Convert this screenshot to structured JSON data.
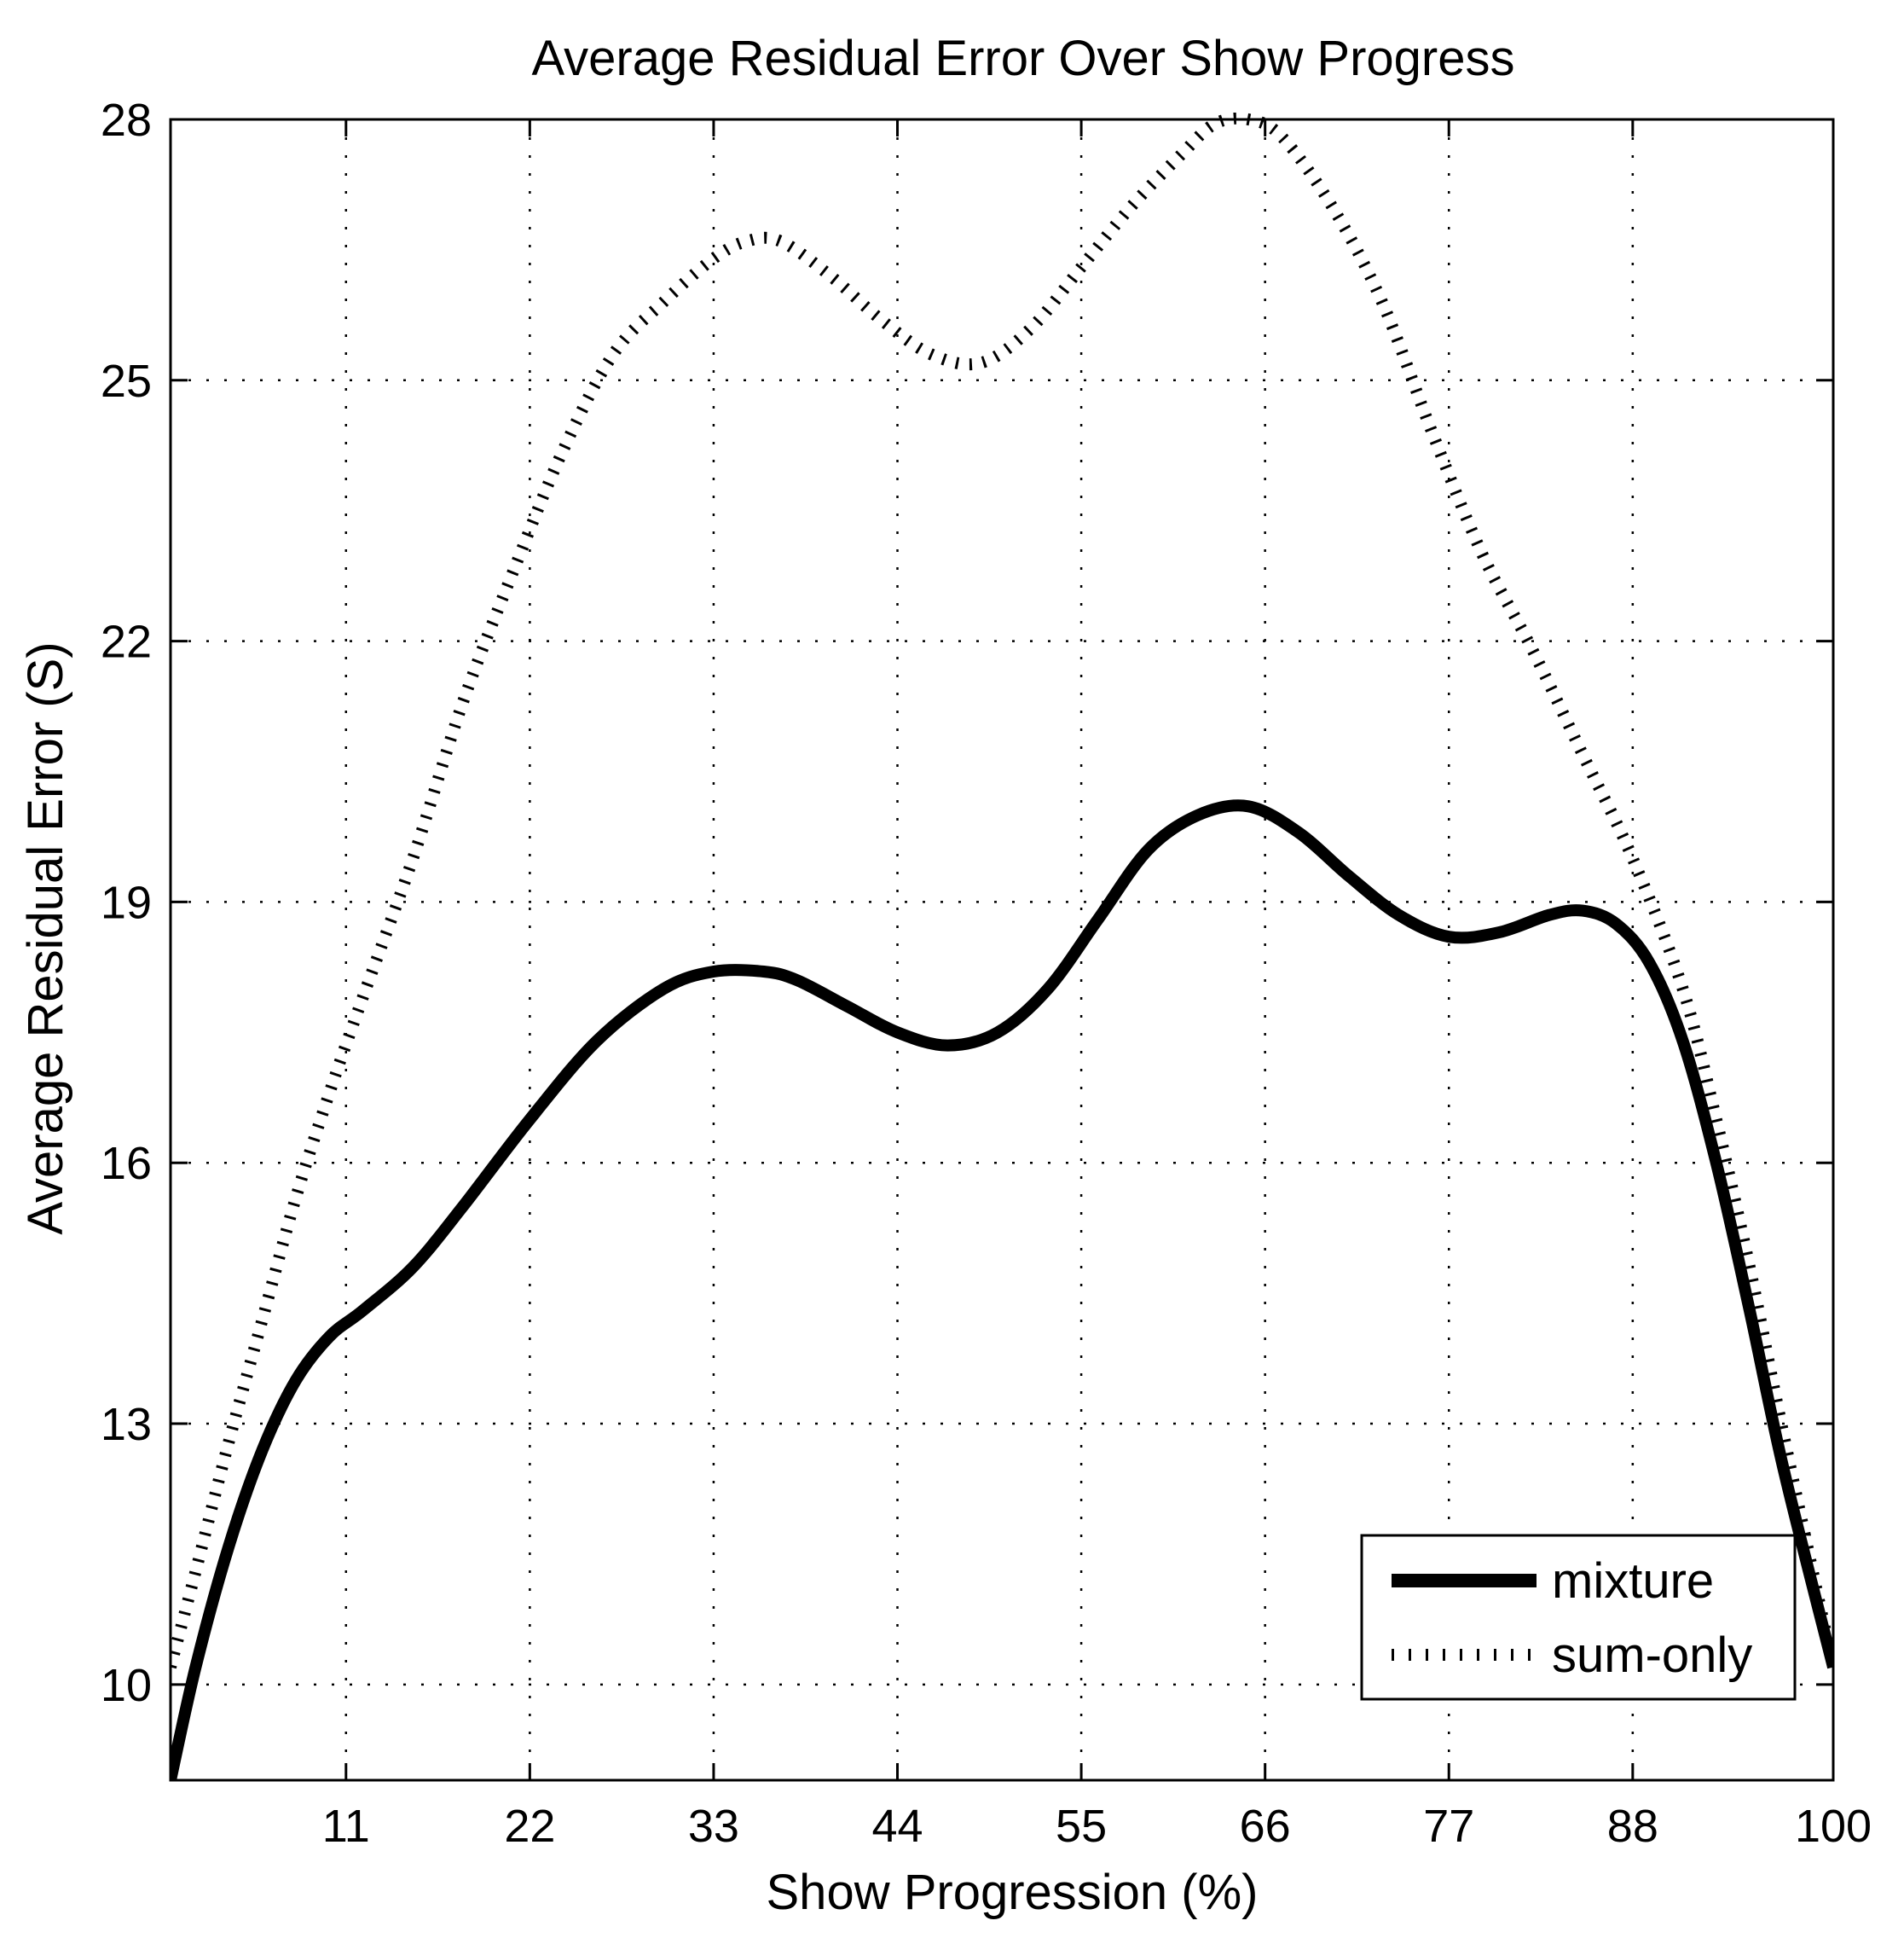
{
  "chart_data": {
    "type": "line",
    "title": "Average Residual Error Over Show Progress",
    "xlabel": "Show Progression (%)",
    "ylabel": "Average Residual Error (S)",
    "xlim": [
      0.5,
      100
    ],
    "ylim": [
      8.9,
      28
    ],
    "x_ticks": [
      11,
      22,
      33,
      44,
      55,
      66,
      77,
      88,
      100
    ],
    "y_ticks": [
      10,
      13,
      16,
      19,
      22,
      25,
      28
    ],
    "grid": true,
    "legend_position": "bottom-right",
    "series": [
      {
        "name": "mixture",
        "style": "solid-thick",
        "color": "#000000",
        "points": [
          [
            0.5,
            8.9
          ],
          [
            2,
            10.2
          ],
          [
            4,
            11.6
          ],
          [
            6,
            12.7
          ],
          [
            8,
            13.5
          ],
          [
            10,
            14.0
          ],
          [
            12,
            14.3
          ],
          [
            15,
            14.8
          ],
          [
            18,
            15.5
          ],
          [
            22,
            16.5
          ],
          [
            26,
            17.4
          ],
          [
            30,
            18.0
          ],
          [
            33,
            18.2
          ],
          [
            36,
            18.2
          ],
          [
            38,
            18.1
          ],
          [
            41,
            17.8
          ],
          [
            44,
            17.5
          ],
          [
            47,
            17.35
          ],
          [
            50,
            17.5
          ],
          [
            53,
            18.0
          ],
          [
            56,
            18.8
          ],
          [
            59,
            19.6
          ],
          [
            62,
            20.0
          ],
          [
            65,
            20.1
          ],
          [
            68,
            19.8
          ],
          [
            71,
            19.3
          ],
          [
            74,
            18.85
          ],
          [
            77,
            18.6
          ],
          [
            80,
            18.65
          ],
          [
            83,
            18.85
          ],
          [
            85,
            18.9
          ],
          [
            87,
            18.75
          ],
          [
            89,
            18.3
          ],
          [
            91,
            17.4
          ],
          [
            93,
            16.0
          ],
          [
            95,
            14.3
          ],
          [
            97,
            12.5
          ],
          [
            100,
            10.2
          ]
        ]
      },
      {
        "name": "sum-only",
        "style": "dotted",
        "color": "#000000",
        "points": [
          [
            0.5,
            10.2
          ],
          [
            2,
            11.3
          ],
          [
            4,
            12.8
          ],
          [
            6,
            14.2
          ],
          [
            8,
            15.6
          ],
          [
            10,
            16.8
          ],
          [
            12,
            17.9
          ],
          [
            15,
            19.5
          ],
          [
            18,
            21.3
          ],
          [
            21,
            22.8
          ],
          [
            24,
            24.2
          ],
          [
            27,
            25.3
          ],
          [
            30,
            25.9
          ],
          [
            33,
            26.4
          ],
          [
            35,
            26.6
          ],
          [
            37,
            26.6
          ],
          [
            40,
            26.2
          ],
          [
            43,
            25.7
          ],
          [
            46,
            25.3
          ],
          [
            49,
            25.2
          ],
          [
            52,
            25.6
          ],
          [
            55,
            26.3
          ],
          [
            58,
            27.0
          ],
          [
            61,
            27.6
          ],
          [
            63,
            27.95
          ],
          [
            65,
            28.0
          ],
          [
            67,
            27.8
          ],
          [
            70,
            27.0
          ],
          [
            73,
            25.9
          ],
          [
            76,
            24.4
          ],
          [
            79,
            23.0
          ],
          [
            82,
            21.9
          ],
          [
            85,
            20.7
          ],
          [
            88,
            19.5
          ],
          [
            91,
            18.0
          ],
          [
            93,
            16.5
          ],
          [
            95,
            14.8
          ],
          [
            97,
            12.9
          ],
          [
            100,
            10.2
          ]
        ]
      }
    ]
  }
}
